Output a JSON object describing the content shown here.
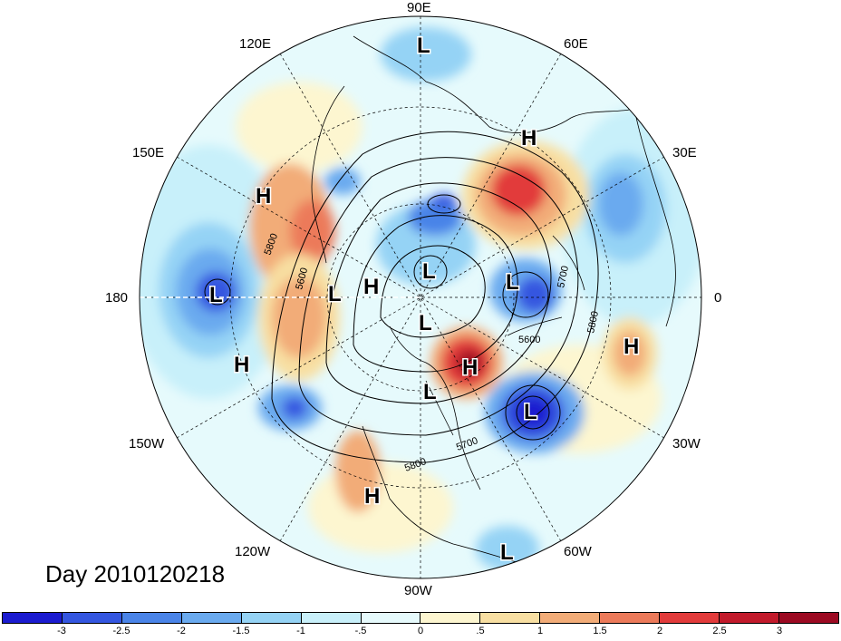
{
  "figure": {
    "title": "Day 2010120218"
  },
  "longitude_labels": {
    "top": "90E",
    "top_right": "60E",
    "right_upper": "30E",
    "right": "0",
    "right_lower": "30W",
    "bottom_right": "60W",
    "bottom": "90W",
    "bottom_left": "120W",
    "left_lower": "150W",
    "left": "180",
    "left_upper": "150E",
    "top_left": "120E"
  },
  "contour_labels": [
    "5800",
    "5600",
    "5700",
    "5800",
    "5600",
    "5700",
    "5800"
  ],
  "pressure_centers": [
    "L",
    "L",
    "L",
    "L",
    "L",
    "L",
    "L",
    "L",
    "H",
    "H",
    "H",
    "H",
    "H",
    "H",
    "H"
  ],
  "colorbar": {
    "ticks": [
      "-3",
      "-2.5",
      "-2",
      "-1.5",
      "-1",
      "-.5",
      "0",
      ".5",
      "1",
      "1.5",
      "2",
      "2.5",
      "3"
    ],
    "colors": [
      "#1b1bd0",
      "#3456e0",
      "#4a84e8",
      "#6aaaef",
      "#95d3f5",
      "#c8f0fa",
      "#e6fafc",
      "#fdf6d0",
      "#f8dfa2",
      "#f2ac78",
      "#ec7a5a",
      "#e23b3b",
      "#c21a2b",
      "#9c0a22"
    ]
  }
}
